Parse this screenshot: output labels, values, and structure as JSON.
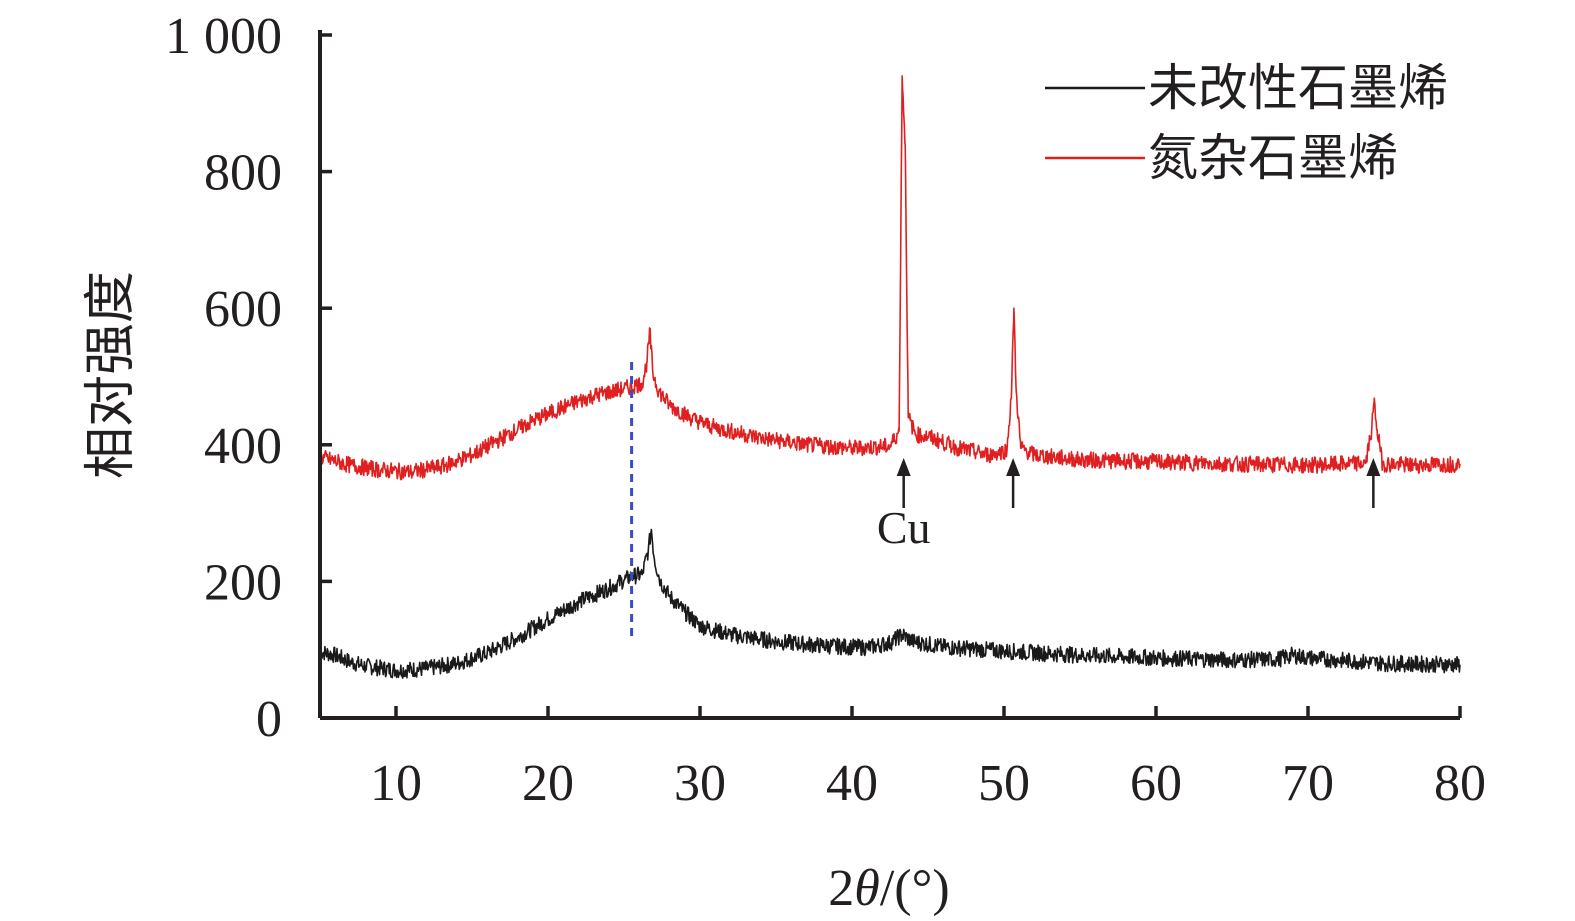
{
  "chart_data": {
    "type": "line",
    "xlabel": "2θ/(°)",
    "ylabel": "相对强度",
    "xlim": [
      5,
      80
    ],
    "ylim": [
      0,
      1000
    ],
    "x_ticks": [
      10,
      20,
      30,
      40,
      50,
      60,
      70,
      80
    ],
    "y_ticks": [
      0,
      200,
      400,
      600,
      800,
      1000
    ],
    "y_tick_labels": [
      "0",
      "200",
      "400",
      "600",
      "800",
      "1 000"
    ],
    "legend_position": "top-right",
    "series": [
      {
        "name": "未改性石墨烯",
        "color": "#1a1a1a",
        "noise": 12,
        "points": [
          [
            5,
            97
          ],
          [
            6,
            92
          ],
          [
            7,
            82
          ],
          [
            8,
            76
          ],
          [
            10,
            70
          ],
          [
            12,
            72
          ],
          [
            14,
            80
          ],
          [
            16,
            95
          ],
          [
            18,
            118
          ],
          [
            20,
            145
          ],
          [
            22,
            170
          ],
          [
            24,
            190
          ],
          [
            25,
            202
          ],
          [
            25.6,
            208
          ],
          [
            26.2,
            210
          ],
          [
            26.6,
            246
          ],
          [
            26.8,
            276
          ],
          [
            27.0,
            232
          ],
          [
            27.4,
            200
          ],
          [
            28,
            178
          ],
          [
            29,
            155
          ],
          [
            30,
            135
          ],
          [
            32,
            122
          ],
          [
            35,
            112
          ],
          [
            38,
            106
          ],
          [
            41,
            103
          ],
          [
            42.5,
            110
          ],
          [
            43.3,
            122
          ],
          [
            44,
            112
          ],
          [
            46,
            104
          ],
          [
            50,
            98
          ],
          [
            55,
            92
          ],
          [
            60,
            88
          ],
          [
            65,
            85
          ],
          [
            68,
            86
          ],
          [
            69,
            92
          ],
          [
            70,
            88
          ],
          [
            75,
            80
          ],
          [
            80,
            78
          ]
        ]
      },
      {
        "name": "氮杂石墨烯",
        "color": "#e02020",
        "noise": 12,
        "points": [
          [
            5,
            382
          ],
          [
            7,
            370
          ],
          [
            9,
            363
          ],
          [
            11,
            360
          ],
          [
            13,
            368
          ],
          [
            15,
            385
          ],
          [
            17,
            410
          ],
          [
            19,
            435
          ],
          [
            21,
            455
          ],
          [
            23,
            472
          ],
          [
            25,
            482
          ],
          [
            26.2,
            490
          ],
          [
            26.5,
            520
          ],
          [
            26.7,
            565
          ],
          [
            26.9,
            505
          ],
          [
            27.3,
            478
          ],
          [
            28,
            458
          ],
          [
            29.5,
            438
          ],
          [
            31,
            425
          ],
          [
            34,
            410
          ],
          [
            37,
            400
          ],
          [
            40,
            395
          ],
          [
            42.5,
            398
          ],
          [
            43.1,
            420
          ],
          [
            43.3,
            940
          ],
          [
            43.5,
            840
          ],
          [
            43.7,
            440
          ],
          [
            44.2,
            415
          ],
          [
            45,
            412
          ],
          [
            47,
            395
          ],
          [
            49,
            385
          ],
          [
            50.2,
            392
          ],
          [
            50.5,
            480
          ],
          [
            50.65,
            600
          ],
          [
            50.8,
            480
          ],
          [
            51.1,
            395
          ],
          [
            52,
            385
          ],
          [
            55,
            378
          ],
          [
            60,
            375
          ],
          [
            65,
            372
          ],
          [
            70,
            370
          ],
          [
            73.8,
            373
          ],
          [
            74.2,
            425
          ],
          [
            74.35,
            462
          ],
          [
            74.55,
            422
          ],
          [
            74.9,
            372
          ],
          [
            77,
            370
          ],
          [
            80,
            372
          ]
        ]
      }
    ],
    "reference_line": {
      "x": 25.5,
      "y_range": [
        120,
        530
      ],
      "color": "#3b4cc0",
      "style": "dashed"
    },
    "annotations": [
      {
        "text": "Cu",
        "arrows_at_x": [
          43.4,
          50.6,
          74.3
        ]
      }
    ]
  }
}
